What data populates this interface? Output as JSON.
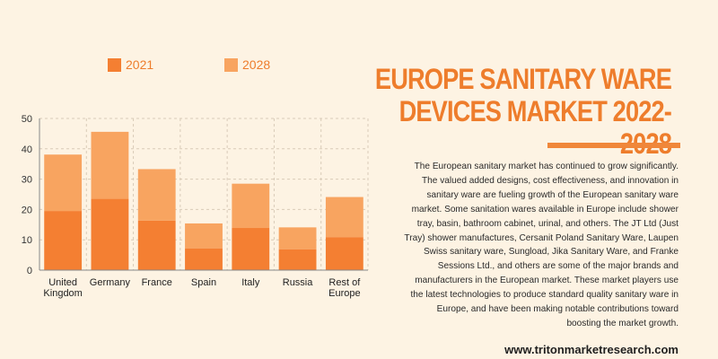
{
  "title_lines": [
    "EUROPE SANITARY WARE",
    "DEVICES MARKET 2022-2028"
  ],
  "description": "The European sanitary market has continued to grow significantly. The valued added designs, cost effectiveness, and innovation in sanitary ware are fueling growth of the European sanitary ware market. Some sanitation wares available in Europe include shower tray, basin, bathroom cabinet, urinal, and others. The JT Ltd (Just Tray) shower manufactures, Cersanit Poland Sanitary Ware, Laupen Swiss sanitary ware, Sungload, Jika Sanitary Ware, and Franke Sessions Ltd., and others are some of the major brands and manufacturers in the European market. These market players use the latest technologies to produce standard quality sanitary ware in Europe, and have been making notable contributions toward boosting the market growth.",
  "website": "www.tritonmarketresearch.com",
  "colors": {
    "accent": "#ee7d2c",
    "series_2021": "#f47f32",
    "series_2028": "#f8a460",
    "background": "#fdf3e3"
  },
  "chart_data": {
    "type": "bar",
    "stacked": true,
    "categories": [
      [
        "United",
        "Kingdom"
      ],
      [
        "Germany"
      ],
      [
        "France"
      ],
      [
        "Spain"
      ],
      [
        "Italy"
      ],
      [
        "Russia"
      ],
      [
        "Rest of",
        "Europe"
      ]
    ],
    "series": [
      {
        "name": "2021",
        "color": "#f47f32",
        "values": [
          19.5,
          23.5,
          16.3,
          7.2,
          13.9,
          6.9,
          10.9
        ]
      },
      {
        "name": "2028",
        "color": "#f8a460",
        "values": [
          18.6,
          22.1,
          17.0,
          8.2,
          14.6,
          7.2,
          13.2
        ]
      }
    ],
    "ylim": [
      0,
      50
    ],
    "yticks": [
      0,
      10,
      20,
      30,
      40,
      50
    ],
    "grid": true,
    "legend_position": "top-left"
  }
}
